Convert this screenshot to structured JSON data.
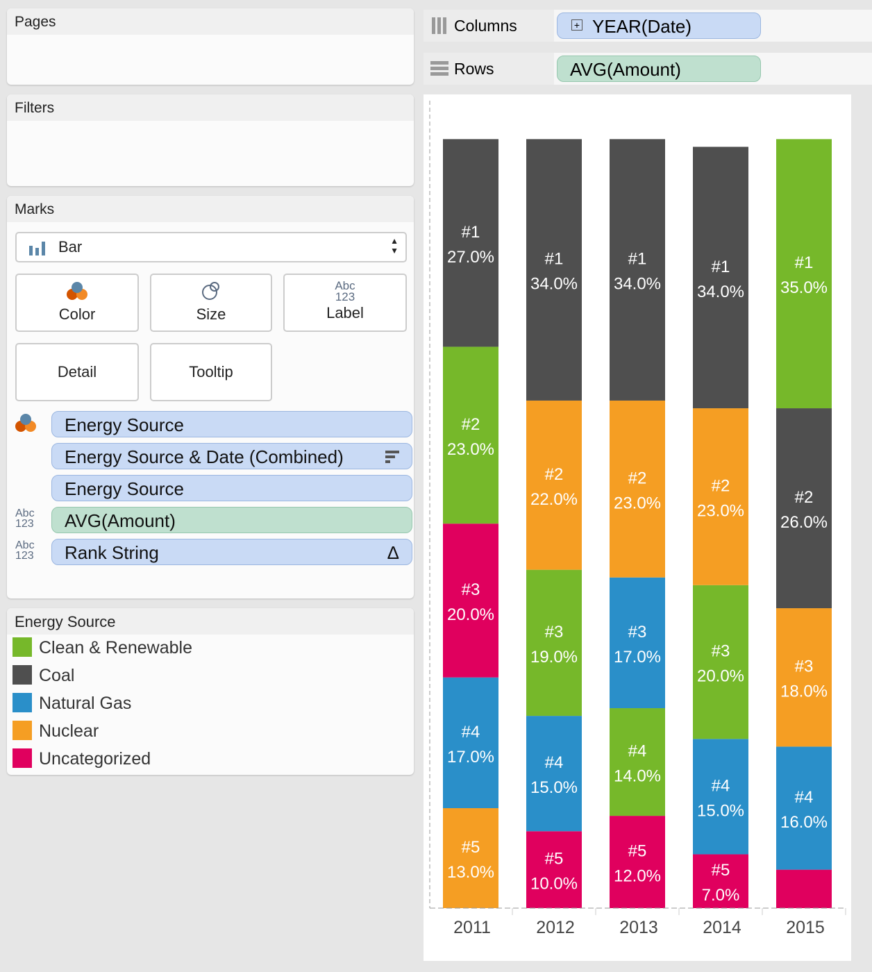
{
  "pages": {
    "title": "Pages"
  },
  "filters": {
    "title": "Filters"
  },
  "marks": {
    "title": "Marks",
    "type": "Bar",
    "buttons": {
      "color": "Color",
      "size": "Size",
      "label": "Label",
      "detail": "Detail",
      "tooltip": "Tooltip"
    },
    "label_icon": "Abc 123",
    "fields": [
      {
        "label": "Energy Source",
        "kind": "color"
      },
      {
        "label": "Energy Source & Date (Combined)",
        "kind": "sort"
      },
      {
        "label": "Energy Source",
        "kind": "detail"
      },
      {
        "label": "AVG(Amount)",
        "kind": "label"
      },
      {
        "label": "Rank String",
        "kind": "label-delta"
      }
    ]
  },
  "legend": {
    "title": "Energy Source",
    "items": [
      {
        "label": "Clean & Renewable",
        "color": "#76b82a"
      },
      {
        "label": "Coal",
        "color": "#4f4f4f"
      },
      {
        "label": "Natural Gas",
        "color": "#2a8fc9"
      },
      {
        "label": "Nuclear",
        "color": "#f59e23"
      },
      {
        "label": "Uncategorized",
        "color": "#e0005e"
      }
    ]
  },
  "shelves": {
    "columns_label": "Columns",
    "columns_pill": "YEAR(Date)",
    "rows_label": "Rows",
    "rows_pill": "AVG(Amount)"
  },
  "chart_data": {
    "type": "bar",
    "stacked": true,
    "categories": [
      "2011",
      "2012",
      "2013",
      "2014",
      "2015"
    ],
    "ylabel": "AVG(Amount)",
    "ylim": [
      0,
      105
    ],
    "colors": {
      "Clean & Renewable": "#76b82a",
      "Coal": "#4f4f4f",
      "Natural Gas": "#2a8fc9",
      "Nuclear": "#f59e23",
      "Uncategorized": "#e0005e"
    },
    "stacks": [
      [
        {
          "rank": "#1",
          "source": "Coal",
          "value": 27
        },
        {
          "rank": "#2",
          "source": "Clean & Renewable",
          "value": 23
        },
        {
          "rank": "#3",
          "source": "Uncategorized",
          "value": 20
        },
        {
          "rank": "#4",
          "source": "Natural Gas",
          "value": 17
        },
        {
          "rank": "#5",
          "source": "Nuclear",
          "value": 13
        }
      ],
      [
        {
          "rank": "#1",
          "source": "Coal",
          "value": 34
        },
        {
          "rank": "#2",
          "source": "Nuclear",
          "value": 22
        },
        {
          "rank": "#3",
          "source": "Clean & Renewable",
          "value": 19
        },
        {
          "rank": "#4",
          "source": "Natural Gas",
          "value": 15
        },
        {
          "rank": "#5",
          "source": "Uncategorized",
          "value": 10
        }
      ],
      [
        {
          "rank": "#1",
          "source": "Coal",
          "value": 34
        },
        {
          "rank": "#2",
          "source": "Nuclear",
          "value": 23
        },
        {
          "rank": "#3",
          "source": "Natural Gas",
          "value": 17
        },
        {
          "rank": "#4",
          "source": "Clean & Renewable",
          "value": 14
        },
        {
          "rank": "#5",
          "source": "Uncategorized",
          "value": 12
        }
      ],
      [
        {
          "rank": "#1",
          "source": "Coal",
          "value": 34
        },
        {
          "rank": "#2",
          "source": "Nuclear",
          "value": 23
        },
        {
          "rank": "#3",
          "source": "Clean & Renewable",
          "value": 20
        },
        {
          "rank": "#4",
          "source": "Natural Gas",
          "value": 15
        },
        {
          "rank": "#5",
          "source": "Uncategorized",
          "value": 7
        }
      ],
      [
        {
          "rank": "#1",
          "source": "Clean & Renewable",
          "value": 35
        },
        {
          "rank": "#2",
          "source": "Coal",
          "value": 26
        },
        {
          "rank": "#3",
          "source": "Nuclear",
          "value": 18
        },
        {
          "rank": "#4",
          "source": "Natural Gas",
          "value": 16
        },
        {
          "rank": "#5",
          "source": "Uncategorized",
          "value": 5,
          "label_hidden": true
        }
      ]
    ]
  }
}
